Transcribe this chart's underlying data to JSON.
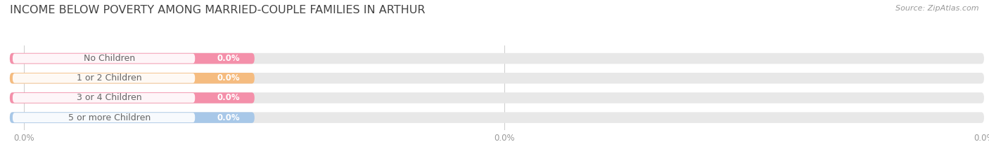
{
  "title": "INCOME BELOW POVERTY AMONG MARRIED-COUPLE FAMILIES IN ARTHUR",
  "source": "Source: ZipAtlas.com",
  "categories": [
    "No Children",
    "1 or 2 Children",
    "3 or 4 Children",
    "5 or more Children"
  ],
  "values": [
    0.0,
    0.0,
    0.0,
    0.0
  ],
  "bar_colors": [
    "#f490aa",
    "#f5bc80",
    "#f490aa",
    "#a8c8e8"
  ],
  "background_color": "#ffffff",
  "bar_bg_color": "#e8e8e8",
  "bar_label_bg": "#ffffff",
  "title_fontsize": 11.5,
  "label_fontsize": 9,
  "value_fontsize": 8.5,
  "tick_fontsize": 8.5,
  "figsize": [
    14.06,
    2.33
  ],
  "dpi": 100,
  "grid_color": "#cccccc",
  "label_text_color": "#666666",
  "tick_color": "#999999",
  "source_color": "#999999",
  "title_color": "#444444"
}
